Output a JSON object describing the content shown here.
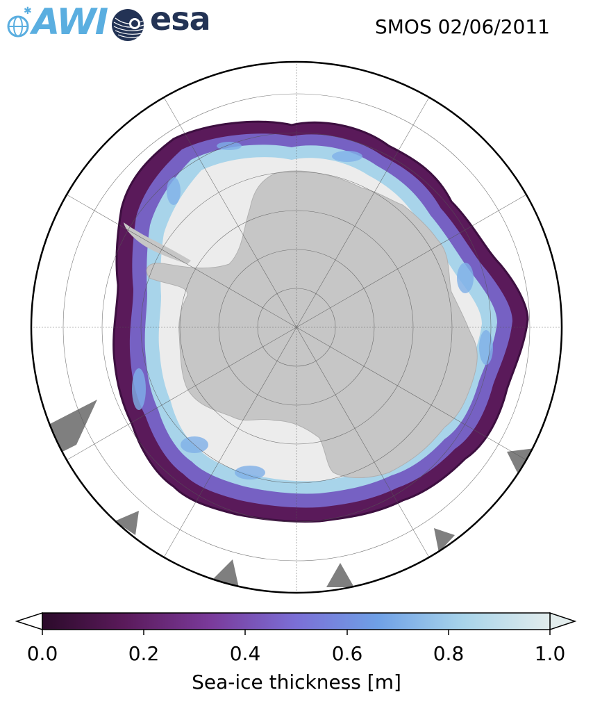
{
  "header": {
    "awi_logo_text": "AWI",
    "esa_logo_text": "esa",
    "title": "SMOS 02/06/2011"
  },
  "map": {
    "projection": "south-polar-stereographic",
    "region": "Antarctica / Southern Ocean",
    "colors": {
      "land": "#c6c6c6",
      "sea_ice_thick": "#ececec",
      "missing_data": "#7f7f7f",
      "ocean": "#ffffff",
      "border": "#000000"
    }
  },
  "colorbar": {
    "label": "Sea-ice thickness [m]",
    "ticks": [
      "0.0",
      "0.2",
      "0.4",
      "0.6",
      "0.8",
      "1.0"
    ],
    "range": [
      0.0,
      1.0
    ],
    "extend": "both",
    "colormap_stops": [
      "#2b0a2a",
      "#5a1a5a",
      "#7a3a9a",
      "#7b6fd6",
      "#6fa0e6",
      "#a8d4ea",
      "#e2ecec"
    ]
  }
}
